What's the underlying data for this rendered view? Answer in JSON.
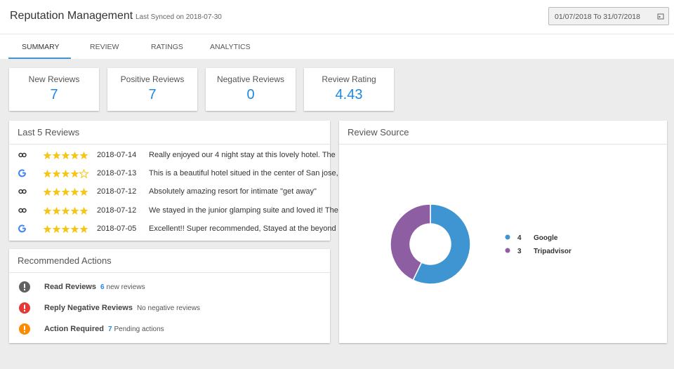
{
  "header": {
    "title": "Reputation Management",
    "subtitle": "Last Synced on 2018-07-30",
    "date_range": "01/07/2018 To 31/07/2018"
  },
  "tabs": [
    "SUMMARY",
    "REVIEW",
    "RATINGS",
    "ANALYTICS"
  ],
  "kpis": [
    {
      "label": "New Reviews",
      "value": 7
    },
    {
      "label": "Positive Reviews",
      "value": 7
    },
    {
      "label": "Negative Reviews",
      "value": 0
    },
    {
      "label": "Review Rating",
      "value": 4.43
    }
  ],
  "last_reviews": {
    "title": "Last 5 Reviews",
    "items": [
      {
        "rating": 5,
        "date": "2018-07-14",
        "text": "Really enjoyed our 4 night stay at this lovely hotel. The"
      },
      {
        "rating": 4,
        "date": "2018-07-13",
        "text": "This is a beautiful hotel situed in the center of San jose,"
      },
      {
        "rating": 5,
        "date": "2018-07-12",
        "text": "Absolutely amazing resort for intimate \"get away\""
      },
      {
        "rating": 5,
        "date": "2018-07-12",
        "text": "We stayed in the junior glamping suite and loved it! The"
      },
      {
        "rating": 5,
        "date": "2018-07-05",
        "text": "Excellent!! Super recommended, Stayed at the beyond"
      }
    ]
  },
  "actions": {
    "title": "Recommended Actions",
    "items": [
      {
        "label": "Read Reviews",
        "count": 6,
        "note": "new reviews"
      },
      {
        "label": "Reply Negative Reviews",
        "note": "No negative reviews"
      },
      {
        "label": "Action Required",
        "count": 7,
        "note": "Pending actions"
      }
    ]
  },
  "chart_data": {
    "type": "pie",
    "title": "Review Source",
    "categories": [
      "Google",
      "Tripadvisor"
    ],
    "values": [
      4,
      3
    ],
    "colors": [
      "#3e95d1",
      "#8e5ea2"
    ],
    "donut": true
  }
}
